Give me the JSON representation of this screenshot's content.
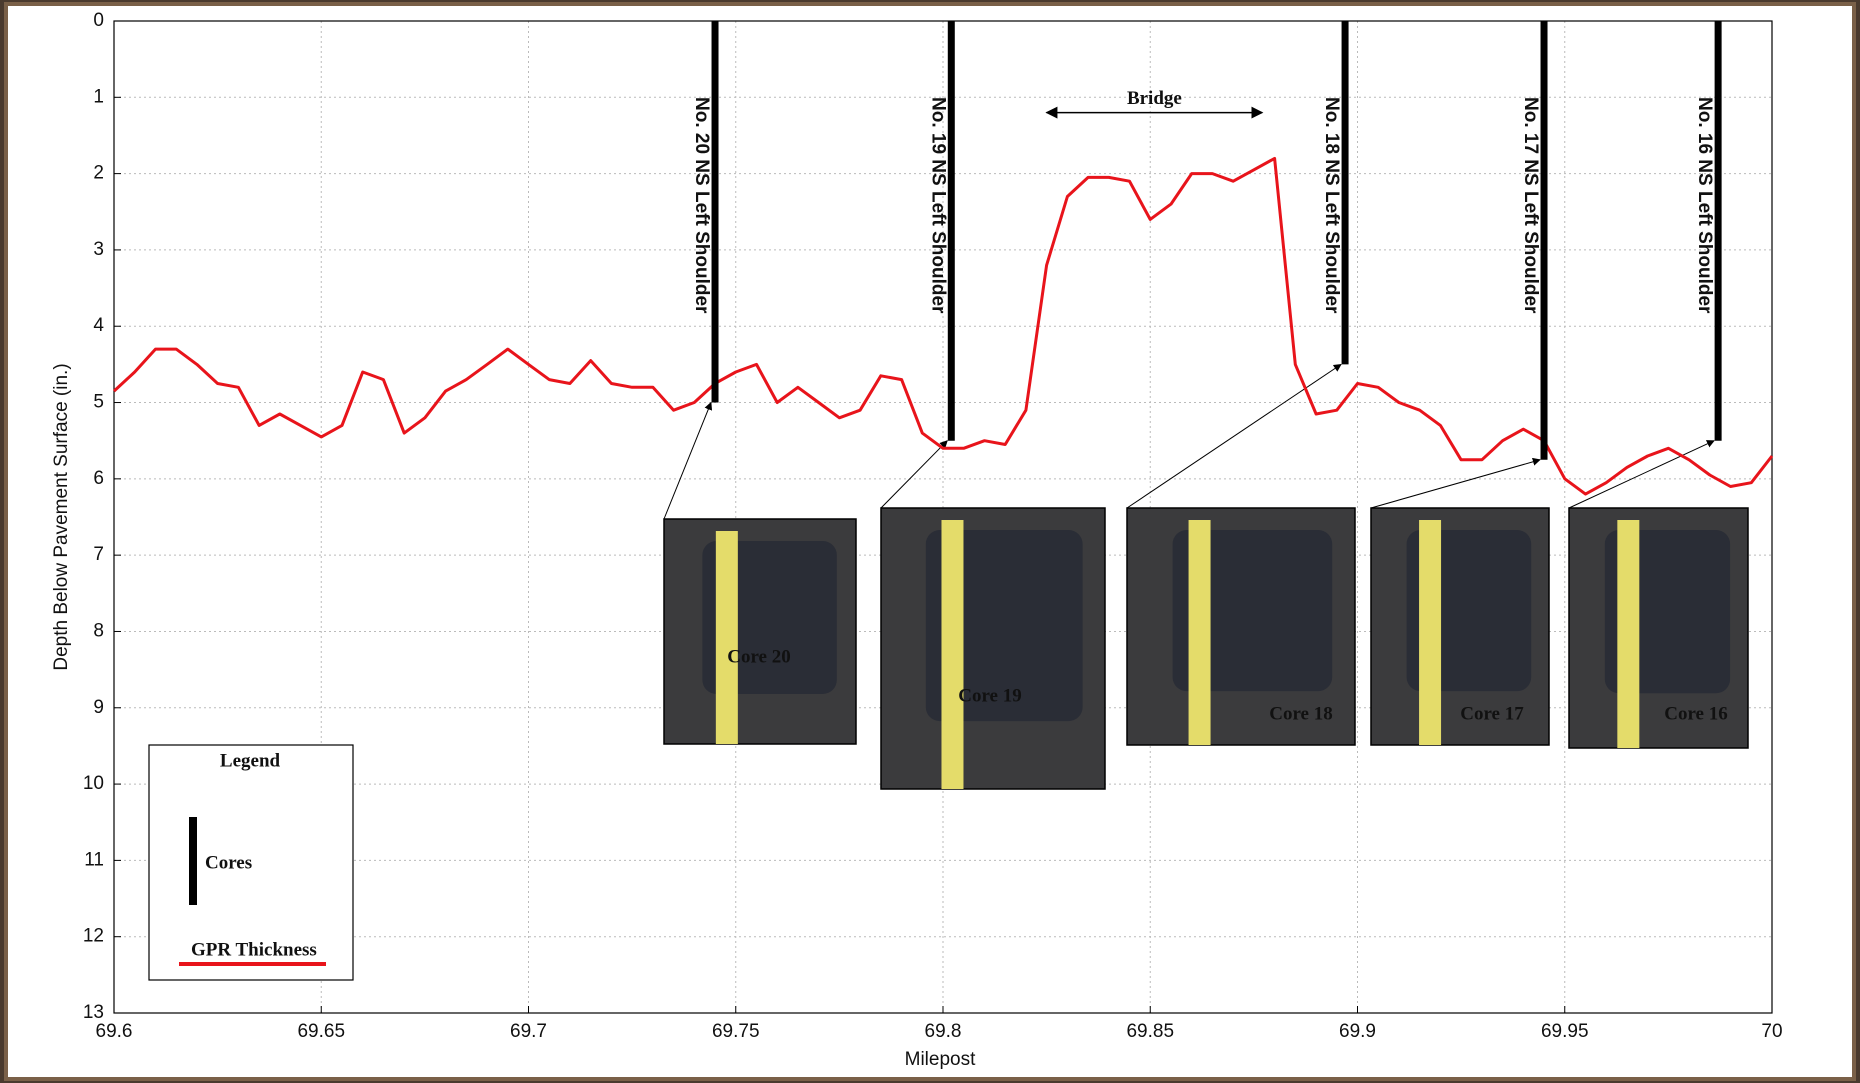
{
  "chart_data": {
    "type": "line",
    "x_label": "Milepost",
    "y_label": "Depth Below Pavement Surface (in.)",
    "xlim": [
      69.6,
      70
    ],
    "xticks": [
      69.6,
      69.65,
      69.7,
      69.75,
      69.8,
      69.85,
      69.9,
      69.95,
      70
    ],
    "ylim": [
      0,
      13
    ],
    "yticks": [
      0,
      1,
      2,
      3,
      4,
      5,
      6,
      7,
      8,
      9,
      10,
      11,
      12,
      13
    ],
    "y_inverted": true,
    "grid": true,
    "x": [
      69.6,
      69.605,
      69.61,
      69.615,
      69.62,
      69.625,
      69.63,
      69.635,
      69.64,
      69.645,
      69.65,
      69.655,
      69.66,
      69.665,
      69.67,
      69.675,
      69.68,
      69.685,
      69.69,
      69.695,
      69.7,
      69.705,
      69.71,
      69.715,
      69.72,
      69.725,
      69.73,
      69.735,
      69.74,
      69.745,
      69.75,
      69.755,
      69.76,
      69.765,
      69.77,
      69.775,
      69.78,
      69.785,
      69.79,
      69.795,
      69.8,
      69.805,
      69.81,
      69.815,
      69.82,
      69.825,
      69.83,
      69.835,
      69.84,
      69.845,
      69.85,
      69.855,
      69.86,
      69.865,
      69.87,
      69.875,
      69.88,
      69.885,
      69.89,
      69.895,
      69.9,
      69.905,
      69.91,
      69.915,
      69.92,
      69.925,
      69.93,
      69.935,
      69.94,
      69.945,
      69.95,
      69.955,
      69.96,
      69.965,
      69.97,
      69.975,
      69.98,
      69.985,
      69.99,
      69.995,
      70
    ],
    "series": [
      {
        "name": "GPR Thickness",
        "color": "#e8141b",
        "values": [
          4.85,
          4.6,
          4.3,
          4.3,
          4.5,
          4.75,
          4.8,
          5.3,
          5.15,
          5.3,
          5.45,
          5.3,
          4.6,
          4.7,
          5.4,
          5.2,
          4.85,
          4.7,
          4.5,
          4.3,
          4.5,
          4.7,
          4.75,
          4.45,
          4.75,
          4.8,
          4.8,
          5.1,
          5.0,
          4.75,
          4.6,
          4.5,
          5.0,
          4.8,
          5.0,
          5.2,
          5.1,
          4.65,
          4.7,
          5.4,
          5.6,
          5.6,
          5.5,
          5.55,
          5.1,
          3.2,
          2.3,
          2.05,
          2.05,
          2.1,
          2.6,
          2.4,
          2.0,
          2.0,
          2.1,
          1.95,
          1.8,
          4.5,
          5.15,
          5.1,
          4.75,
          4.8,
          5.0,
          5.1,
          5.3,
          5.75,
          5.75,
          5.5,
          5.35,
          5.5,
          6.0,
          6.2,
          6.05,
          5.85,
          5.7,
          5.6,
          5.75,
          5.95,
          6.1,
          6.05,
          5.7
        ]
      }
    ],
    "cores": [
      {
        "label": "No. 20 NS Left Shoulder",
        "x": 69.745,
        "depth": 5.0,
        "photo_label": "Core 20"
      },
      {
        "label": "No. 19 NS Left Shoulder",
        "x": 69.802,
        "depth": 5.5,
        "photo_label": "Core 19"
      },
      {
        "label": "No. 18 NS Left Shoulder",
        "x": 69.897,
        "depth": 4.5,
        "photo_label": "Core 18"
      },
      {
        "label": "No. 17 NS Left Shoulder",
        "x": 69.945,
        "depth": 5.75,
        "photo_label": "Core 17"
      },
      {
        "label": "No. 16 NS Left Shoulder",
        "x": 69.987,
        "depth": 5.5,
        "photo_label": "Core 16"
      }
    ],
    "annotations": [
      {
        "text": "Bridge",
        "x_start": 69.825,
        "x_end": 69.877,
        "depth": 1.2
      }
    ],
    "legend": {
      "title": "Legend",
      "cores_label": "Cores",
      "position": "lower left"
    }
  }
}
